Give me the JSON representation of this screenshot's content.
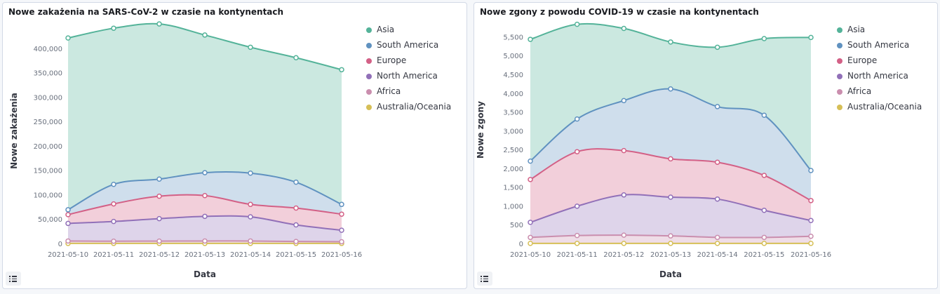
{
  "colors": {
    "Asia": "#54b399",
    "South America": "#6092c0",
    "Europe": "#d36086",
    "North America": "#9170b8",
    "Africa": "#ca8eae",
    "Australia/Oceania": "#d6bf57"
  },
  "chart_data": [
    {
      "type": "area",
      "stacked": true,
      "title": "Nowe zakażenia na SARS-CoV-2 w czasie na kontynentach",
      "xlabel": "Data",
      "ylabel": "Nowe zakażenia",
      "ylim": [
        0,
        450000
      ],
      "yticks": [
        0,
        50000,
        100000,
        150000,
        200000,
        250000,
        300000,
        350000,
        400000
      ],
      "ytick_labels": [
        "0",
        "50,000",
        "100,000",
        "150,000",
        "200,000",
        "250,000",
        "300,000",
        "350,000",
        "400,000"
      ],
      "legend_position": "right",
      "x": [
        "2021-05-10",
        "2021-05-11",
        "2021-05-12",
        "2021-05-13",
        "2021-05-14",
        "2021-05-15",
        "2021-05-16"
      ],
      "series": [
        {
          "name": "Australia/Oceania",
          "values": [
            100,
            100,
            100,
            100,
            100,
            100,
            100
          ]
        },
        {
          "name": "Africa",
          "values": [
            5000,
            4500,
            4800,
            5000,
            5000,
            4000,
            3500
          ]
        },
        {
          "name": "North America",
          "values": [
            36000,
            40500,
            46000,
            50500,
            49500,
            34000,
            23500
          ]
        },
        {
          "name": "Europe",
          "values": [
            18000,
            36000,
            46000,
            42500,
            25500,
            34500,
            33000
          ]
        },
        {
          "name": "South America",
          "values": [
            10000,
            40000,
            35000,
            47000,
            64000,
            53000,
            20000
          ]
        },
        {
          "name": "Asia",
          "values": [
            352000,
            320000,
            318000,
            282000,
            258000,
            255000,
            276000
          ]
        }
      ]
    },
    {
      "type": "area",
      "stacked": true,
      "title": "Nowe zgony z powodu COVID-19 w czasie na kontynentach",
      "xlabel": "Data",
      "ylabel": "Nowe zgony",
      "ylim": [
        0,
        5900
      ],
      "yticks": [
        0,
        500,
        1000,
        1500,
        2000,
        2500,
        3000,
        3500,
        4000,
        4500,
        5000,
        5500
      ],
      "ytick_labels": [
        "0",
        "500",
        "1,000",
        "1,500",
        "2,000",
        "2,500",
        "3,000",
        "3,500",
        "4,000",
        "4,500",
        "5,000",
        "5,500"
      ],
      "legend_position": "right",
      "x": [
        "2021-05-10",
        "2021-05-11",
        "2021-05-12",
        "2021-05-13",
        "2021-05-14",
        "2021-05-15",
        "2021-05-16"
      ],
      "series": [
        {
          "name": "Australia/Oceania",
          "values": [
            2,
            2,
            2,
            2,
            2,
            2,
            2
          ]
        },
        {
          "name": "Africa",
          "values": [
            160,
            210,
            220,
            200,
            160,
            160,
            190
          ]
        },
        {
          "name": "North America",
          "values": [
            400,
            780,
            1070,
            1030,
            1020,
            720,
            420
          ]
        },
        {
          "name": "Europe",
          "values": [
            1140,
            1450,
            1180,
            1020,
            980,
            930,
            530
          ]
        },
        {
          "name": "South America",
          "values": [
            490,
            870,
            1330,
            1860,
            1480,
            1600,
            800
          ]
        },
        {
          "name": "Asia",
          "values": [
            3240,
            2520,
            1920,
            1250,
            1580,
            2040,
            3540
          ]
        }
      ]
    }
  ]
}
